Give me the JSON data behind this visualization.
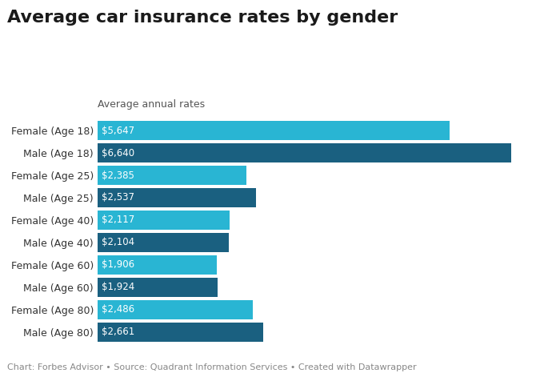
{
  "title": "Average car insurance rates by gender",
  "subtitle": "Average annual rates",
  "categories": [
    "Female (Age 18)",
    "Male (Age 18)",
    "Female (Age 25)",
    "Male (Age 25)",
    "Female (Age 40)",
    "Male (Age 40)",
    "Female (Age 60)",
    "Male (Age 60)",
    "Female (Age 80)",
    "Male (Age 80)"
  ],
  "values": [
    5647,
    6640,
    2385,
    2537,
    2117,
    2104,
    1906,
    1924,
    2486,
    2661
  ],
  "labels": [
    "$5,647",
    "$6,640",
    "$2,385",
    "$2,537",
    "$2,117",
    "$2,104",
    "$1,906",
    "$1,924",
    "$2,486",
    "$2,661"
  ],
  "colors": [
    "#29b5d3",
    "#1a6080",
    "#29b5d3",
    "#1a6080",
    "#29b5d3",
    "#1a6080",
    "#29b5d3",
    "#1a6080",
    "#29b5d3",
    "#1a6080"
  ],
  "background_color": "#ffffff",
  "title_fontsize": 16,
  "subtitle_fontsize": 9,
  "label_fontsize": 8.5,
  "tick_fontsize": 9,
  "footer": "Chart: Forbes Advisor • Source: Quadrant Information Services • Created with Datawrapper",
  "footer_fontsize": 8,
  "xlim": [
    0,
    7200
  ]
}
